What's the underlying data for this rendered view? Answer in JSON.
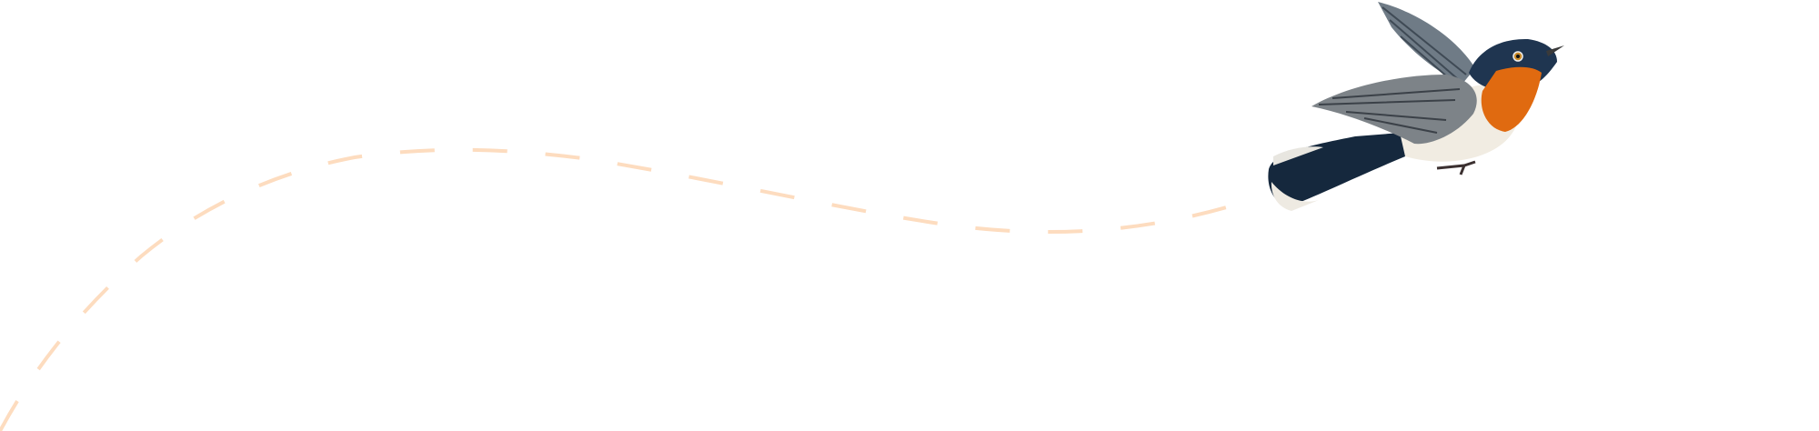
{
  "illustration": {
    "subject": "bird-in-flight",
    "flight_path_style": "dashed",
    "colors": {
      "background": "#ffffff",
      "flight_path": "#fddcbf",
      "bird_head": "#1f3550",
      "bird_throat": "#e06a10",
      "bird_belly": "#f1ece2",
      "bird_wing": "#7d8388",
      "bird_tail": "#15283d"
    }
  }
}
